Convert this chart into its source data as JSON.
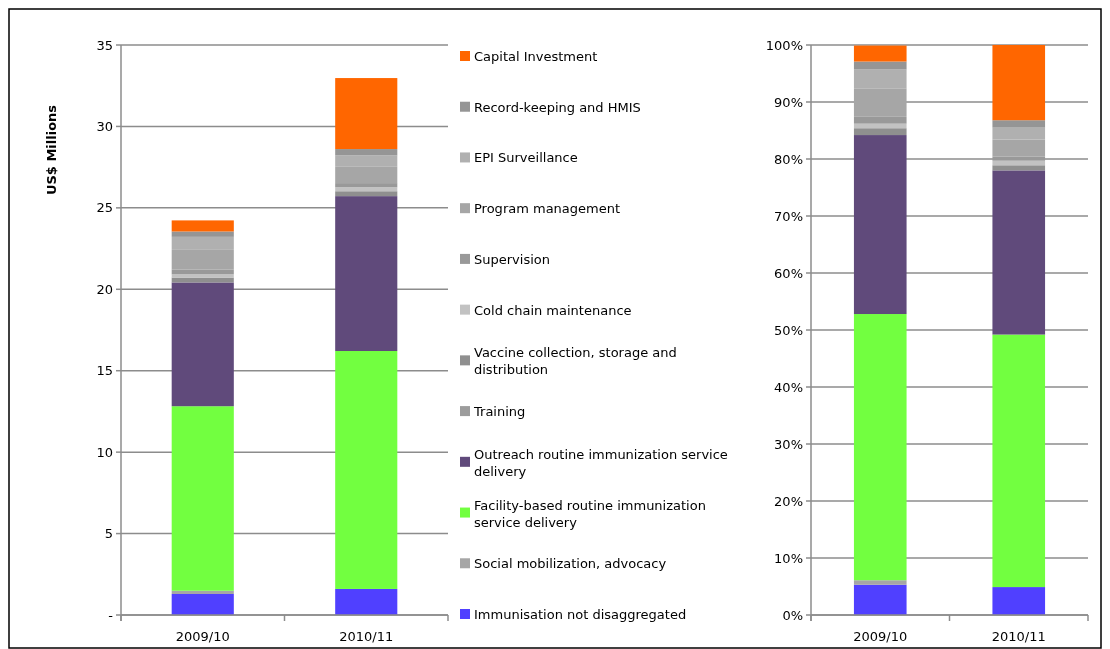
{
  "chart_data": [
    {
      "type": "bar",
      "stacked": true,
      "ylabel": "US$ Millions",
      "categories": [
        "2009/10",
        "2010/11"
      ],
      "ylim": [
        0,
        35
      ],
      "yticks": [
        {
          "value": 0,
          "label": "-"
        },
        5,
        10,
        15,
        20,
        25,
        30,
        35
      ],
      "grid": "y",
      "legend": "right",
      "series": [
        {
          "name": "Immunisation not disaggregated",
          "color": "#5040ff",
          "values": [
            1.29,
            1.6
          ]
        },
        {
          "name": "Social mobilization, advocacy",
          "color": "#a6a6a6",
          "values": [
            0.2,
            0
          ]
        },
        {
          "name": "Facility-based routine immunization service delivery",
          "color": "#72ff40",
          "values": [
            11.33,
            14.61
          ]
        },
        {
          "name": "Outreach routine immunization service delivery",
          "color": "#604a7b",
          "values": [
            7.6,
            9.51
          ]
        },
        {
          "name": "Training",
          "color": "#9c9c9c",
          "values": [
            0,
            0
          ]
        },
        {
          "name": "Vaccine collection, storage and distribution",
          "color": "#8f8f8f",
          "values": [
            0.3,
            0.3
          ]
        },
        {
          "name": "Cold chain maintenance",
          "color": "#c2c2c2",
          "values": [
            0.2,
            0.25
          ]
        },
        {
          "name": "Supervision",
          "color": "#999999",
          "values": [
            0.3,
            0.25
          ]
        },
        {
          "name": "Program management",
          "color": "#a6a6a6",
          "values": [
            1.2,
            1.0
          ]
        },
        {
          "name": "EPI Surveillance",
          "color": "#b0b0b0",
          "values": [
            0.8,
            0.7
          ]
        },
        {
          "name": "Record-keeping and HMIS",
          "color": "#959595",
          "values": [
            0.33,
            0.39
          ]
        },
        {
          "name": "Capital Investment",
          "color": "#ff6600",
          "values": [
            0.68,
            4.36
          ]
        }
      ]
    },
    {
      "type": "bar",
      "stacked": true,
      "categories": [
        "2009/10",
        "2010/11"
      ],
      "ylim": [
        0,
        100
      ],
      "yticks": [
        {
          "value": 0,
          "label": "0%"
        },
        {
          "value": 10,
          "label": "10%"
        },
        {
          "value": 20,
          "label": "20%"
        },
        {
          "value": 30,
          "label": "30%"
        },
        {
          "value": 40,
          "label": "40%"
        },
        {
          "value": 50,
          "label": "50%"
        },
        {
          "value": 60,
          "label": "60%"
        },
        {
          "value": 70,
          "label": "70%"
        },
        {
          "value": 80,
          "label": "80%"
        },
        {
          "value": 90,
          "label": "90%"
        },
        {
          "value": 100,
          "label": "100%"
        }
      ],
      "grid": "y",
      "series": [
        {
          "color": "#5040ff",
          "values": [
            5.3,
            4.9
          ]
        },
        {
          "color": "#a6a6a6",
          "values": [
            0.8,
            0
          ]
        },
        {
          "color": "#72ff40",
          "values": [
            46.7,
            44.3
          ]
        },
        {
          "color": "#604a7b",
          "values": [
            31.4,
            28.8
          ]
        },
        {
          "color": "#9c9c9c",
          "values": [
            0,
            0
          ]
        },
        {
          "color": "#8f8f8f",
          "values": [
            1.2,
            0.9
          ]
        },
        {
          "color": "#c2c2c2",
          "values": [
            0.8,
            0.8
          ]
        },
        {
          "color": "#999999",
          "values": [
            1.2,
            0.7
          ]
        },
        {
          "color": "#a6a6a6",
          "values": [
            5.0,
            3.0
          ]
        },
        {
          "color": "#b0b0b0",
          "values": [
            3.3,
            2.1
          ]
        },
        {
          "color": "#959595",
          "values": [
            1.4,
            1.3
          ]
        },
        {
          "color": "#ff6600",
          "values": [
            2.8,
            13.2
          ]
        }
      ]
    }
  ]
}
